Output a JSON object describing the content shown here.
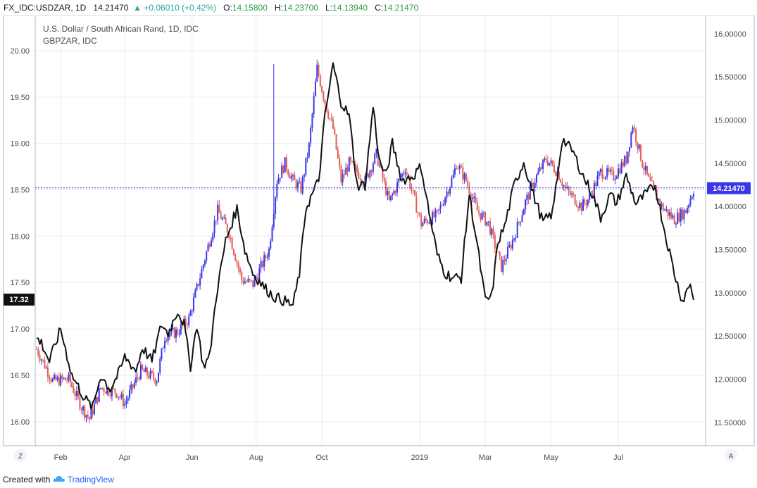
{
  "header": {
    "symbol": "FX_IDC:USDZAR, 1D",
    "last": "14.21470",
    "change": "+0.06010 (+0.42%)",
    "o_label": "O:",
    "o_value": "14.15800",
    "h_label": "H:",
    "h_value": "14.23700",
    "l_label": "L:",
    "l_value": "14.13940",
    "c_label": "C:",
    "c_value": "14.21470",
    "up_icon": "triangle-up-icon"
  },
  "footer": {
    "created_with": "Created with",
    "brand": "TradingView",
    "logo_icon": "tradingview-cloud-icon"
  },
  "controls": {
    "left_button": "Z",
    "right_button": "A"
  },
  "colors": {
    "up": "#3b37e6",
    "down": "#e25c55",
    "overlay": "#111111",
    "grid": "#e8ebf0",
    "priceline": "#3b37e6",
    "axis_badge_left": "#111111",
    "axis_badge_right": "#3b37e6"
  },
  "chart_data": {
    "type": "line",
    "title": "U.S. Dollar / South African Rand, 1D, IDC",
    "subtitle": "GBPZAR, IDC",
    "x_ticks": [
      "Feb",
      "Apr",
      "Jun",
      "Aug",
      "Oct",
      "2019",
      "Mar",
      "May",
      "Jul"
    ],
    "x_tick_index": [
      15,
      55,
      97,
      137,
      178,
      239,
      280,
      321,
      363
    ],
    "left_axis": {
      "ticks": [
        "16.00",
        "16.50",
        "17.00",
        "17.50",
        "18.00",
        "18.50",
        "19.00",
        "19.50",
        "20.00"
      ],
      "range": [
        15.74,
        20.38
      ],
      "current": "17.32"
    },
    "right_axis": {
      "ticks": [
        "11.50000",
        "12.00000",
        "12.50000",
        "13.00000",
        "13.50000",
        "14.00000",
        "14.50000",
        "15.00000",
        "15.50000",
        "16.00000"
      ],
      "range": [
        11.23,
        16.21
      ],
      "current": "14.21470"
    },
    "series": [
      {
        "name": "FX_IDC:USDZAR",
        "style": "candles",
        "anchors": [
          [
            0,
            12.35
          ],
          [
            10,
            11.98
          ],
          [
            20,
            12.0
          ],
          [
            28,
            11.68
          ],
          [
            33,
            11.54
          ],
          [
            40,
            11.9
          ],
          [
            50,
            11.85
          ],
          [
            55,
            11.72
          ],
          [
            65,
            12.1
          ],
          [
            75,
            12.0
          ],
          [
            80,
            12.5
          ],
          [
            88,
            12.55
          ],
          [
            95,
            12.7
          ],
          [
            105,
            13.4
          ],
          [
            113,
            13.95
          ],
          [
            120,
            13.7
          ],
          [
            128,
            13.15
          ],
          [
            135,
            13.1
          ],
          [
            140,
            13.3
          ],
          [
            145,
            13.5
          ],
          [
            150,
            14.3
          ],
          [
            155,
            14.5
          ],
          [
            160,
            14.3
          ],
          [
            165,
            14.2
          ],
          [
            170,
            14.7
          ],
          [
            175,
            15.6
          ],
          [
            180,
            15.2
          ],
          [
            185,
            14.9
          ],
          [
            190,
            14.3
          ],
          [
            195,
            14.5
          ],
          [
            205,
            14.3
          ],
          [
            212,
            14.6
          ],
          [
            220,
            14.05
          ],
          [
            230,
            14.45
          ],
          [
            240,
            13.8
          ],
          [
            250,
            13.9
          ],
          [
            260,
            14.35
          ],
          [
            262,
            14.5
          ],
          [
            268,
            14.3
          ],
          [
            275,
            13.95
          ],
          [
            282,
            13.8
          ],
          [
            290,
            13.3
          ],
          [
            298,
            13.65
          ],
          [
            305,
            14.05
          ],
          [
            312,
            14.35
          ],
          [
            318,
            14.55
          ],
          [
            325,
            14.4
          ],
          [
            330,
            14.2
          ],
          [
            340,
            14.0
          ],
          [
            345,
            14.1
          ],
          [
            352,
            14.4
          ],
          [
            360,
            14.35
          ],
          [
            368,
            14.55
          ],
          [
            372,
            14.95
          ],
          [
            378,
            14.5
          ],
          [
            382,
            14.3
          ],
          [
            390,
            14.0
          ],
          [
            398,
            13.85
          ],
          [
            405,
            13.95
          ],
          [
            410,
            14.2
          ]
        ]
      },
      {
        "name": "GBPZAR",
        "style": "line",
        "anchors": [
          [
            0,
            16.9
          ],
          [
            3,
            16.85
          ],
          [
            8,
            16.65
          ],
          [
            15,
            17.0
          ],
          [
            22,
            16.5
          ],
          [
            30,
            16.25
          ],
          [
            35,
            16.15
          ],
          [
            40,
            16.5
          ],
          [
            46,
            16.35
          ],
          [
            52,
            16.55
          ],
          [
            55,
            16.7
          ],
          [
            62,
            16.55
          ],
          [
            66,
            16.8
          ],
          [
            72,
            16.65
          ],
          [
            78,
            17.05
          ],
          [
            82,
            16.95
          ],
          [
            88,
            17.2
          ],
          [
            92,
            17.05
          ],
          [
            96,
            16.6
          ],
          [
            100,
            17.05
          ],
          [
            104,
            16.6
          ],
          [
            108,
            16.7
          ],
          [
            112,
            17.35
          ],
          [
            118,
            17.95
          ],
          [
            125,
            18.3
          ],
          [
            130,
            17.85
          ],
          [
            135,
            17.6
          ],
          [
            142,
            17.45
          ],
          [
            148,
            17.35
          ],
          [
            155,
            17.3
          ],
          [
            160,
            17.25
          ],
          [
            164,
            17.6
          ],
          [
            168,
            18.3
          ],
          [
            172,
            18.45
          ],
          [
            176,
            18.6
          ],
          [
            180,
            19.3
          ],
          [
            185,
            19.85
          ],
          [
            190,
            19.45
          ],
          [
            195,
            19.3
          ],
          [
            200,
            18.55
          ],
          [
            205,
            18.55
          ],
          [
            210,
            19.4
          ],
          [
            214,
            18.8
          ],
          [
            218,
            18.65
          ],
          [
            222,
            19.0
          ],
          [
            228,
            18.6
          ],
          [
            235,
            18.65
          ],
          [
            240,
            18.75
          ],
          [
            245,
            18.25
          ],
          [
            250,
            17.8
          ],
          [
            255,
            17.6
          ],
          [
            260,
            17.55
          ],
          [
            265,
            17.55
          ],
          [
            270,
            18.45
          ],
          [
            275,
            17.9
          ],
          [
            280,
            17.3
          ],
          [
            284,
            17.35
          ],
          [
            288,
            17.95
          ],
          [
            292,
            18.1
          ],
          [
            298,
            18.55
          ],
          [
            304,
            18.8
          ],
          [
            310,
            18.45
          ],
          [
            316,
            18.15
          ],
          [
            322,
            18.25
          ],
          [
            328,
            19.05
          ],
          [
            335,
            18.9
          ],
          [
            341,
            18.65
          ],
          [
            347,
            18.45
          ],
          [
            352,
            18.2
          ],
          [
            358,
            18.45
          ],
          [
            362,
            18.35
          ],
          [
            368,
            18.65
          ],
          [
            374,
            18.35
          ],
          [
            380,
            18.45
          ],
          [
            386,
            18.55
          ],
          [
            392,
            18.05
          ],
          [
            398,
            17.6
          ],
          [
            403,
            17.3
          ],
          [
            408,
            17.5
          ],
          [
            410,
            17.32
          ]
        ]
      }
    ],
    "grid": true,
    "legend": "top-left"
  }
}
